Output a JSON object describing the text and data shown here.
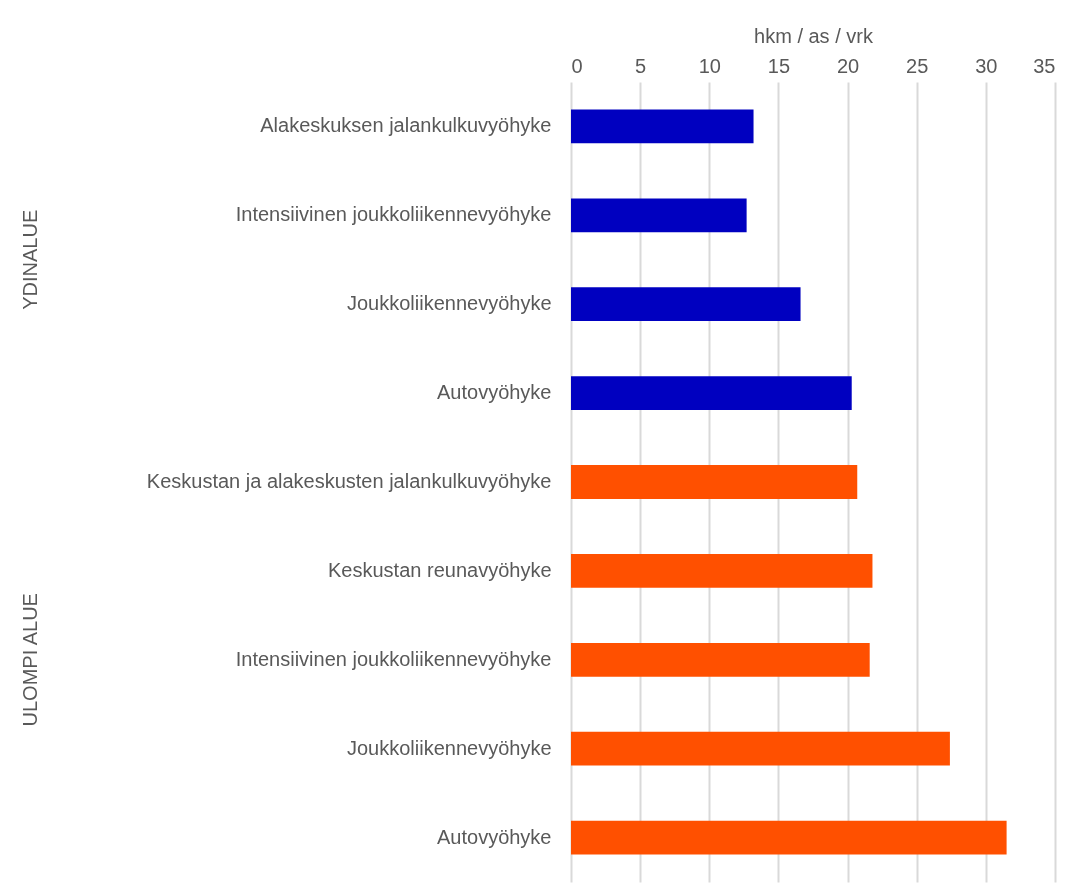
{
  "chart_data": {
    "type": "bar",
    "orientation": "horizontal",
    "xlabel": "hkm / as / vrk",
    "categories": [
      "Alakeskuksen jalankulkuvyöhyke",
      "Intensiivinen joukkoliikennevyöhyke",
      "Joukkoliikennevyöhyke",
      "Autovyöhyke",
      "Keskustan ja alakeskusten jalankulkuvyöhyke",
      "Keskustan reunavyöhyke",
      "Intensiivinen joukkoliikennevyöhyke",
      "Joukkoliikennevyöhyke",
      "Autovyöhyke"
    ],
    "values": [
      13.2,
      12.7,
      16.6,
      20.3,
      20.7,
      21.8,
      21.6,
      27.4,
      31.5
    ],
    "colors": [
      "#0000c0",
      "#0000c0",
      "#0000c0",
      "#0000c0",
      "#ff5000",
      "#ff5000",
      "#ff5000",
      "#ff5000",
      "#ff5000"
    ],
    "xlim": [
      0,
      35
    ],
    "xticks": [
      0,
      5,
      10,
      15,
      20,
      25,
      30,
      35
    ],
    "grid": "x",
    "annotations": [
      "YDINALUE",
      "ULOMPI ALUE"
    ]
  }
}
